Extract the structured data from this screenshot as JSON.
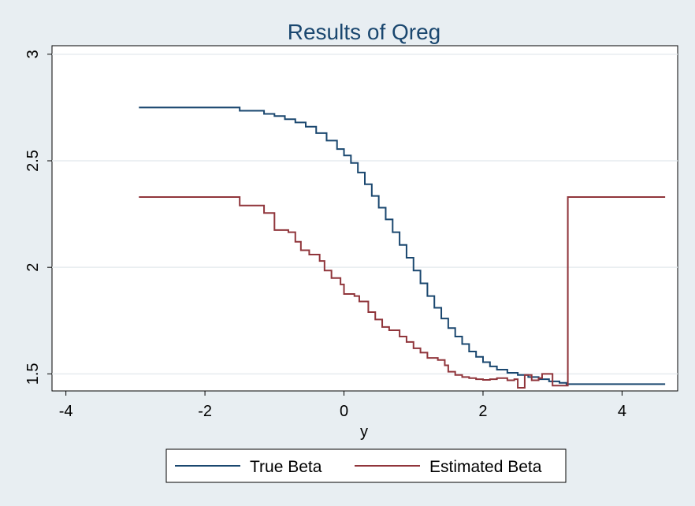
{
  "chart_data": {
    "type": "line",
    "title": "Results of Qreg",
    "xlabel": "y",
    "ylabel": "",
    "xlim": [
      -4.2,
      4.8
    ],
    "ylim": [
      1.42,
      3.04
    ],
    "xticks": [
      -4,
      -2,
      0,
      2,
      4
    ],
    "xtick_labels": [
      "-4",
      "-2",
      "0",
      "2",
      "4"
    ],
    "yticks": [
      1.5,
      2,
      2.5,
      3
    ],
    "ytick_labels": [
      "1.5",
      "2",
      "2.5",
      "3"
    ],
    "grid": "horizontal",
    "legend_position": "bottom",
    "series": [
      {
        "name": "True Beta",
        "color": "#1a476f",
        "step": true,
        "points": [
          [
            -2.95,
            2.75
          ],
          [
            -1.5,
            2.75
          ],
          [
            -1.5,
            2.735
          ],
          [
            -1.15,
            2.735
          ],
          [
            -1.15,
            2.72
          ],
          [
            -1.0,
            2.71
          ],
          [
            -0.85,
            2.695
          ],
          [
            -0.7,
            2.68
          ],
          [
            -0.55,
            2.66
          ],
          [
            -0.4,
            2.63
          ],
          [
            -0.25,
            2.595
          ],
          [
            -0.1,
            2.555
          ],
          [
            0.0,
            2.525
          ],
          [
            0.1,
            2.49
          ],
          [
            0.2,
            2.445
          ],
          [
            0.3,
            2.39
          ],
          [
            0.4,
            2.335
          ],
          [
            0.5,
            2.28
          ],
          [
            0.6,
            2.225
          ],
          [
            0.7,
            2.165
          ],
          [
            0.8,
            2.105
          ],
          [
            0.9,
            2.045
          ],
          [
            1.0,
            1.985
          ],
          [
            1.1,
            1.925
          ],
          [
            1.2,
            1.865
          ],
          [
            1.3,
            1.81
          ],
          [
            1.4,
            1.76
          ],
          [
            1.5,
            1.715
          ],
          [
            1.6,
            1.675
          ],
          [
            1.7,
            1.64
          ],
          [
            1.8,
            1.605
          ],
          [
            1.9,
            1.58
          ],
          [
            2.0,
            1.555
          ],
          [
            2.1,
            1.535
          ],
          [
            2.2,
            1.52
          ],
          [
            2.35,
            1.505
          ],
          [
            2.5,
            1.495
          ],
          [
            2.65,
            1.485
          ],
          [
            2.8,
            1.475
          ],
          [
            2.95,
            1.465
          ],
          [
            3.1,
            1.458
          ],
          [
            3.2,
            1.452
          ],
          [
            4.62,
            1.452
          ]
        ]
      },
      {
        "name": "Estimated Beta",
        "color": "#90353b",
        "step": true,
        "points": [
          [
            -2.95,
            2.33
          ],
          [
            -1.5,
            2.33
          ],
          [
            -1.5,
            2.29
          ],
          [
            -1.15,
            2.29
          ],
          [
            -1.15,
            2.255
          ],
          [
            -1.0,
            2.255
          ],
          [
            -1.0,
            2.175
          ],
          [
            -0.8,
            2.165
          ],
          [
            -0.7,
            2.12
          ],
          [
            -0.62,
            2.08
          ],
          [
            -0.5,
            2.06
          ],
          [
            -0.35,
            2.03
          ],
          [
            -0.28,
            1.985
          ],
          [
            -0.18,
            1.95
          ],
          [
            -0.05,
            1.92
          ],
          [
            0.0,
            1.875
          ],
          [
            0.15,
            1.865
          ],
          [
            0.22,
            1.84
          ],
          [
            0.35,
            1.79
          ],
          [
            0.45,
            1.755
          ],
          [
            0.55,
            1.72
          ],
          [
            0.65,
            1.705
          ],
          [
            0.8,
            1.675
          ],
          [
            0.9,
            1.65
          ],
          [
            1.0,
            1.62
          ],
          [
            1.1,
            1.6
          ],
          [
            1.2,
            1.575
          ],
          [
            1.35,
            1.565
          ],
          [
            1.45,
            1.54
          ],
          [
            1.5,
            1.51
          ],
          [
            1.6,
            1.495
          ],
          [
            1.7,
            1.485
          ],
          [
            1.8,
            1.48
          ],
          [
            1.9,
            1.475
          ],
          [
            2.0,
            1.472
          ],
          [
            2.1,
            1.475
          ],
          [
            2.2,
            1.48
          ],
          [
            2.35,
            1.47
          ],
          [
            2.45,
            1.475
          ],
          [
            2.5,
            1.435
          ],
          [
            2.6,
            1.495
          ],
          [
            2.7,
            1.47
          ],
          [
            2.8,
            1.48
          ],
          [
            2.85,
            1.5
          ],
          [
            3.0,
            1.445
          ],
          [
            3.22,
            1.445
          ],
          [
            3.22,
            2.33
          ],
          [
            4.62,
            2.33
          ]
        ]
      }
    ]
  }
}
